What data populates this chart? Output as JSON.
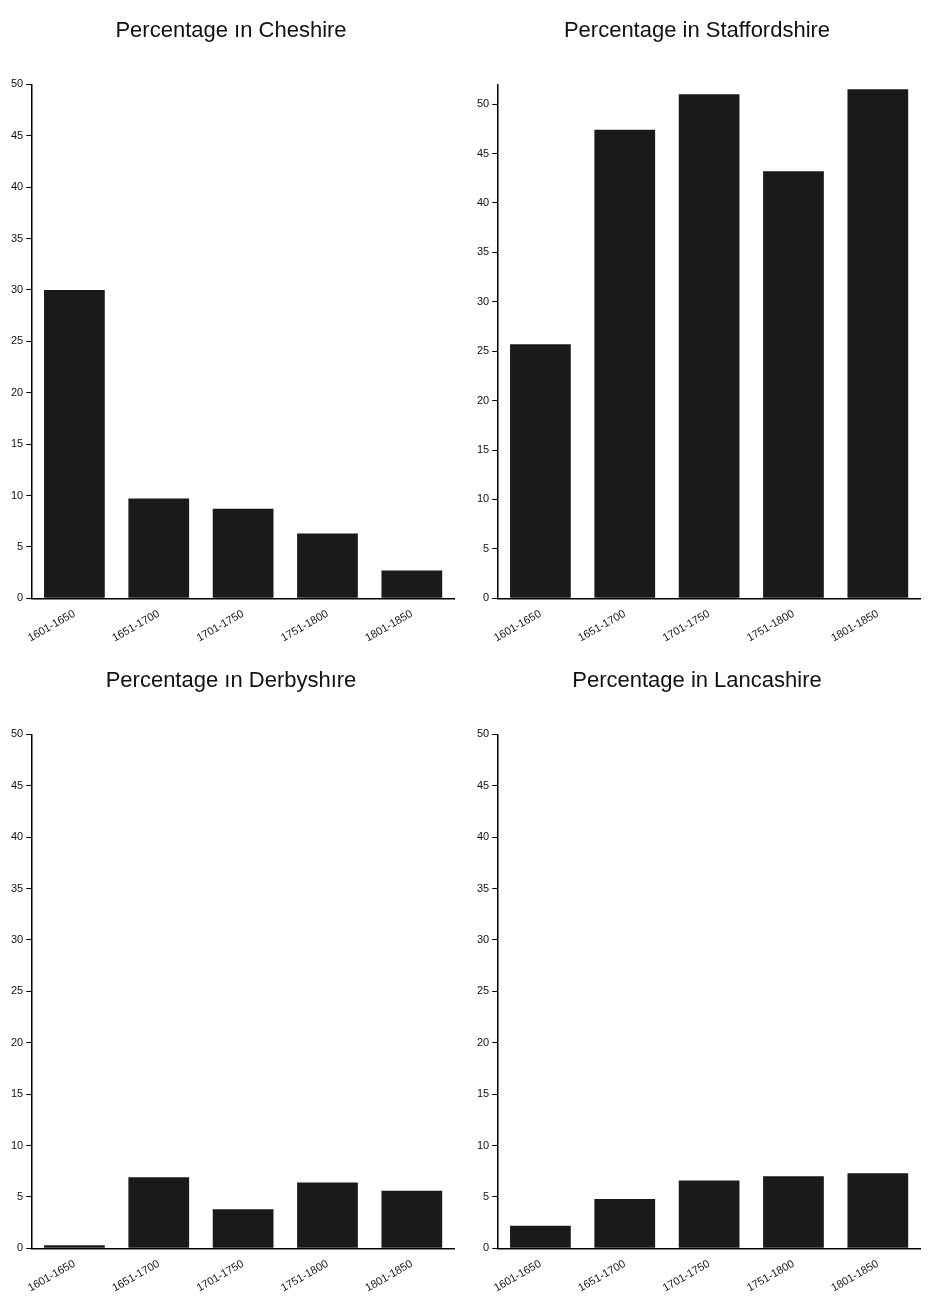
{
  "chart_data": [
    {
      "type": "bar",
      "title": "Percentage ın Cheshire",
      "categories": [
        "1601-1650",
        "1651-1700",
        "1701-1750",
        "1751-1800",
        "1801-1850"
      ],
      "values": [
        30,
        9.7,
        8.7,
        6.3,
        2.7
      ],
      "color": "#1a1a1a",
      "ylim": [
        0,
        50
      ],
      "yticks": [
        0,
        5,
        10,
        15,
        20,
        25,
        30,
        35,
        40,
        45,
        50
      ],
      "grid": false,
      "legend": false
    },
    {
      "type": "bar",
      "title": "Percentage in Staffordshire",
      "categories": [
        "1601-1650",
        "1651-1700",
        "1701-1750",
        "1751-1800",
        "1801-1850"
      ],
      "values": [
        25.7,
        47.4,
        51,
        43.2,
        51.5
      ],
      "color": "#1a1a1a",
      "ylim": [
        0,
        52
      ],
      "yticks": [
        0,
        5,
        10,
        15,
        20,
        25,
        30,
        35,
        40,
        45,
        50
      ],
      "grid": false,
      "legend": false
    },
    {
      "type": "bar",
      "title": "Percentage ın Derbyshıre",
      "categories": [
        "1601-1650",
        "1651-1700",
        "1701-1750",
        "1751-1800",
        "1801-1850"
      ],
      "values": [
        0.3,
        6.9,
        3.8,
        6.4,
        5.6
      ],
      "color": "#1a1a1a",
      "ylim": [
        0,
        50
      ],
      "yticks": [
        0,
        5,
        10,
        15,
        20,
        25,
        30,
        35,
        40,
        45,
        50
      ],
      "grid": false,
      "legend": false
    },
    {
      "type": "bar",
      "title": "Percentage in Lancashire",
      "categories": [
        "1601-1650",
        "1651-1700",
        "1701-1750",
        "1751-1800",
        "1801-1850"
      ],
      "values": [
        2.2,
        4.8,
        6.6,
        7.0,
        7.3
      ],
      "color": "#1a1a1a",
      "ylim": [
        0,
        50
      ],
      "yticks": [
        0,
        5,
        10,
        15,
        20,
        25,
        30,
        35,
        40,
        45,
        50
      ],
      "grid": false,
      "legend": false
    }
  ]
}
